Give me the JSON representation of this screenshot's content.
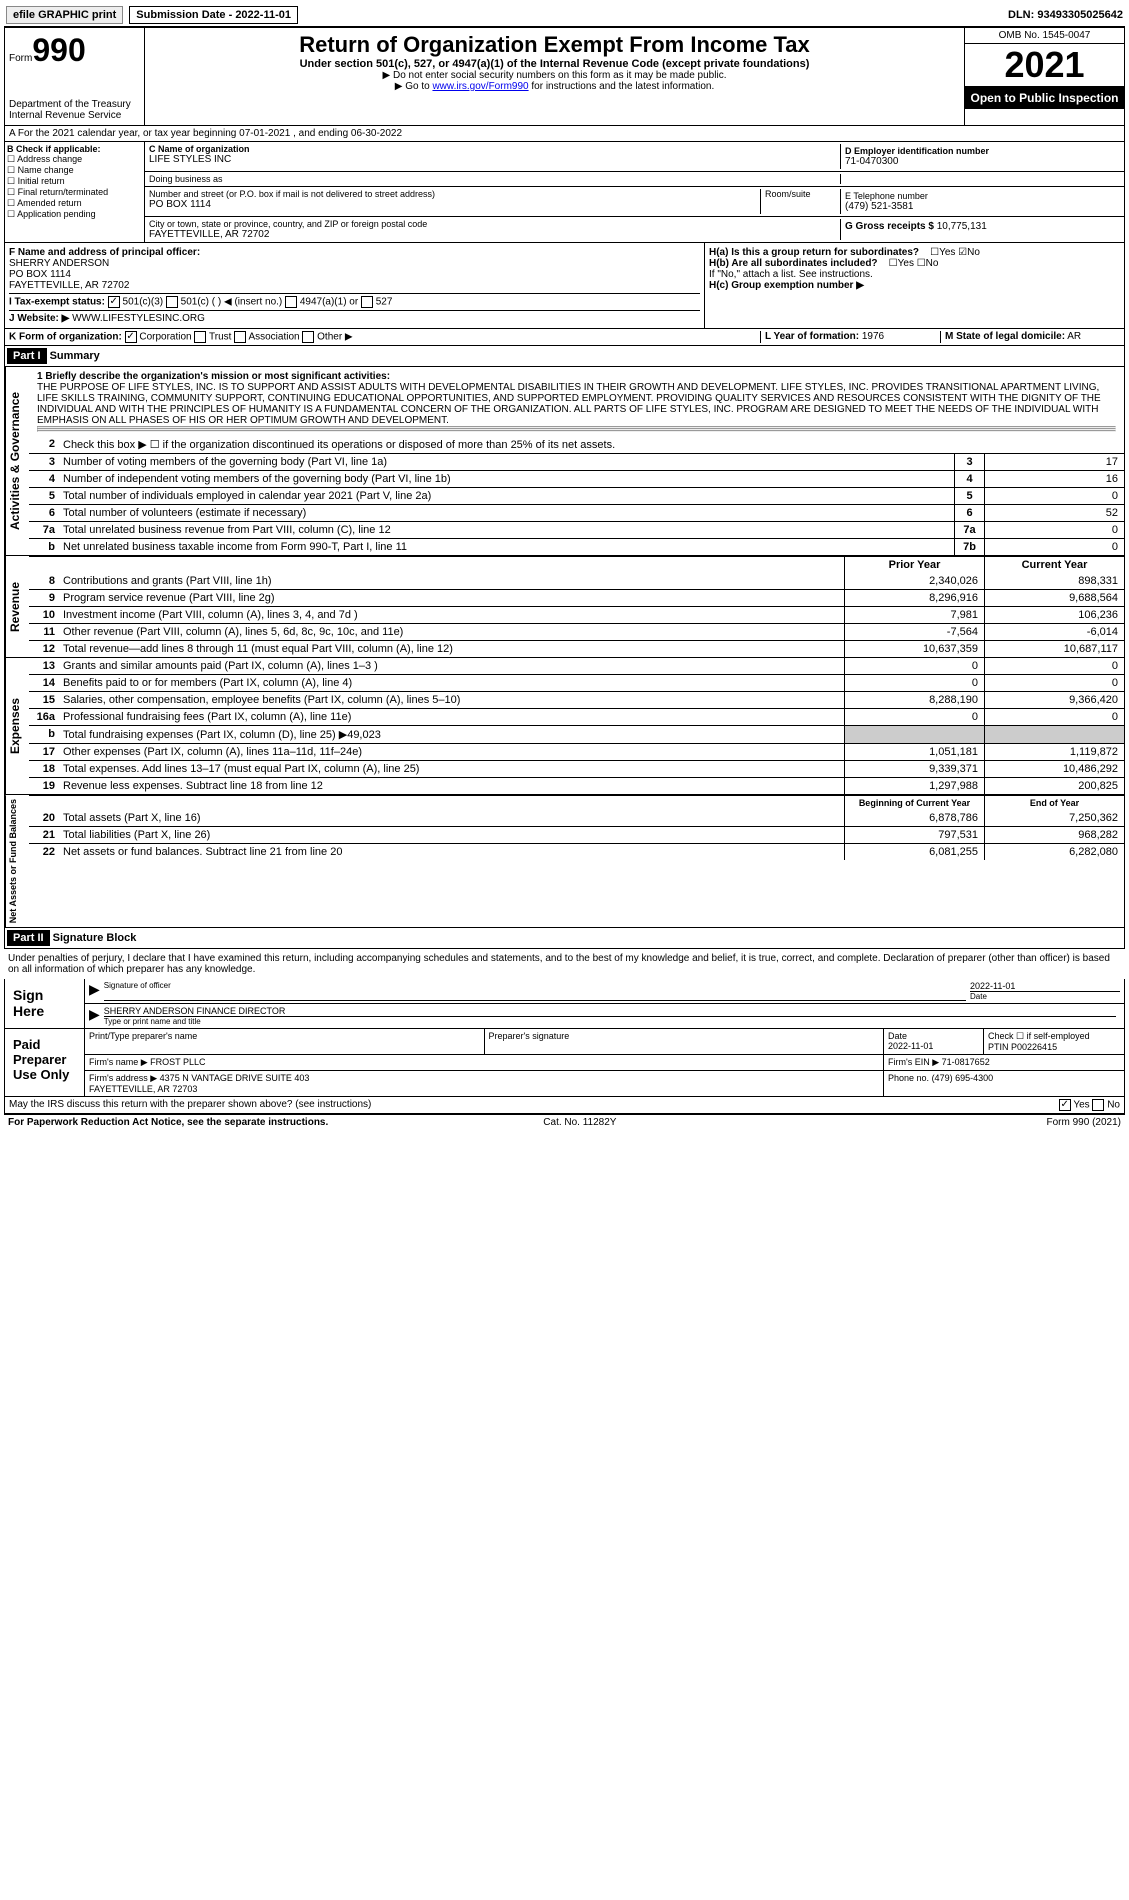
{
  "top": {
    "efile": "efile GRAPHIC print",
    "submission": "Submission Date - 2022-11-01",
    "dln": "DLN: 93493305025642"
  },
  "header": {
    "form_label": "Form",
    "form_num": "990",
    "title": "Return of Organization Exempt From Income Tax",
    "subtitle": "Under section 501(c), 527, or 4947(a)(1) of the Internal Revenue Code (except private foundations)",
    "note1": "▶ Do not enter social security numbers on this form as it may be made public.",
    "note2_prefix": "▶ Go to ",
    "note2_link": "www.irs.gov/Form990",
    "note2_suffix": " for instructions and the latest information.",
    "dept": "Department of the Treasury\nInternal Revenue Service",
    "omb": "OMB No. 1545-0047",
    "year": "2021",
    "inspect": "Open to Public Inspection"
  },
  "row_a": "A For the 2021 calendar year, or tax year beginning 07-01-2021   , and ending 06-30-2022",
  "box_b": {
    "label": "B Check if applicable:",
    "items": [
      "Address change",
      "Name change",
      "Initial return",
      "Final return/terminated",
      "Amended return",
      "Application pending"
    ]
  },
  "box_c": {
    "label_c": "C Name of organization",
    "org": "LIFE STYLES INC",
    "dba_label": "Doing business as",
    "addr_label": "Number and street (or P.O. box if mail is not delivered to street address)",
    "room_label": "Room/suite",
    "addr": "PO BOX 1114",
    "city_label": "City or town, state or province, country, and ZIP or foreign postal code",
    "city": "FAYETTEVILLE, AR  72702"
  },
  "box_d": {
    "label": "D Employer identification number",
    "val": "71-0470300"
  },
  "box_e": {
    "label": "E Telephone number",
    "val": "(479) 521-3581"
  },
  "box_g": {
    "label": "G Gross receipts $",
    "val": "10,775,131"
  },
  "box_f": {
    "label": "F  Name and address of principal officer:",
    "name": "SHERRY ANDERSON",
    "addr1": "PO BOX 1114",
    "addr2": "FAYETTEVILLE, AR  72702"
  },
  "box_h": {
    "ha": "H(a)  Is this a group return for subordinates?",
    "hb": "H(b)  Are all subordinates included?",
    "hb_note": "If \"No,\" attach a list. See instructions.",
    "hc": "H(c)  Group exemption number ▶"
  },
  "row_i": {
    "label": "I  Tax-exempt status:",
    "opts": [
      "501(c)(3)",
      "501(c) (  ) ◀ (insert no.)",
      "4947(a)(1) or",
      "527"
    ]
  },
  "row_j": {
    "label": "J  Website: ▶",
    "val": "WWW.LIFESTYLESINC.ORG"
  },
  "row_k": {
    "label": "K Form of organization:",
    "opts": [
      "Corporation",
      "Trust",
      "Association",
      "Other ▶"
    ]
  },
  "row_l": {
    "label": "L Year of formation:",
    "val": "1976"
  },
  "row_m": {
    "label": "M State of legal domicile:",
    "val": "AR"
  },
  "part1": {
    "hdr": "Part I",
    "title": "Summary"
  },
  "mission": {
    "label": "1   Briefly describe the organization's mission or most significant activities:",
    "text": "THE PURPOSE OF LIFE STYLES, INC. IS TO SUPPORT AND ASSIST ADULTS WITH DEVELOPMENTAL DISABILITIES IN THEIR GROWTH AND DEVELOPMENT. LIFE STYLES, INC. PROVIDES TRANSITIONAL APARTMENT LIVING, LIFE SKILLS TRAINING, COMMUNITY SUPPORT, CONTINUING EDUCATIONAL OPPORTUNITIES, AND SUPPORTED EMPLOYMENT. PROVIDING QUALITY SERVICES AND RESOURCES CONSISTENT WITH THE DIGNITY OF THE INDIVIDUAL AND WITH THE PRINCIPLES OF HUMANITY IS A FUNDAMENTAL CONCERN OF THE ORGANIZATION. ALL PARTS OF LIFE STYLES, INC. PROGRAM ARE DESIGNED TO MEET THE NEEDS OF THE INDIVIDUAL WITH EMPHASIS ON ALL PHASES OF HIS OR HER OPTIMUM GROWTH AND DEVELOPMENT."
  },
  "governance": {
    "label": "Activities & Governance",
    "rows": [
      {
        "n": "2",
        "d": "Check this box ▶ ☐ if the organization discontinued its operations or disposed of more than 25% of its net assets.",
        "box": "",
        "v": ""
      },
      {
        "n": "3",
        "d": "Number of voting members of the governing body (Part VI, line 1a)",
        "box": "3",
        "v": "17"
      },
      {
        "n": "4",
        "d": "Number of independent voting members of the governing body (Part VI, line 1b)",
        "box": "4",
        "v": "16"
      },
      {
        "n": "5",
        "d": "Total number of individuals employed in calendar year 2021 (Part V, line 2a)",
        "box": "5",
        "v": "0"
      },
      {
        "n": "6",
        "d": "Total number of volunteers (estimate if necessary)",
        "box": "6",
        "v": "52"
      },
      {
        "n": "7a",
        "d": "Total unrelated business revenue from Part VIII, column (C), line 12",
        "box": "7a",
        "v": "0"
      },
      {
        "n": "b",
        "d": "Net unrelated business taxable income from Form 990-T, Part I, line 11",
        "box": "7b",
        "v": "0"
      }
    ]
  },
  "col_headers": {
    "prior": "Prior Year",
    "current": "Current Year"
  },
  "revenue": {
    "label": "Revenue",
    "rows": [
      {
        "n": "8",
        "d": "Contributions and grants (Part VIII, line 1h)",
        "p": "2,340,026",
        "c": "898,331"
      },
      {
        "n": "9",
        "d": "Program service revenue (Part VIII, line 2g)",
        "p": "8,296,916",
        "c": "9,688,564"
      },
      {
        "n": "10",
        "d": "Investment income (Part VIII, column (A), lines 3, 4, and 7d )",
        "p": "7,981",
        "c": "106,236"
      },
      {
        "n": "11",
        "d": "Other revenue (Part VIII, column (A), lines 5, 6d, 8c, 9c, 10c, and 11e)",
        "p": "-7,564",
        "c": "-6,014"
      },
      {
        "n": "12",
        "d": "Total revenue—add lines 8 through 11 (must equal Part VIII, column (A), line 12)",
        "p": "10,637,359",
        "c": "10,687,117"
      }
    ]
  },
  "expenses": {
    "label": "Expenses",
    "rows": [
      {
        "n": "13",
        "d": "Grants and similar amounts paid (Part IX, column (A), lines 1–3 )",
        "p": "0",
        "c": "0"
      },
      {
        "n": "14",
        "d": "Benefits paid to or for members (Part IX, column (A), line 4)",
        "p": "0",
        "c": "0"
      },
      {
        "n": "15",
        "d": "Salaries, other compensation, employee benefits (Part IX, column (A), lines 5–10)",
        "p": "8,288,190",
        "c": "9,366,420"
      },
      {
        "n": "16a",
        "d": "Professional fundraising fees (Part IX, column (A), line 11e)",
        "p": "0",
        "c": "0"
      },
      {
        "n": "b",
        "d": "Total fundraising expenses (Part IX, column (D), line 25) ▶49,023",
        "p": "",
        "c": "",
        "gray": true
      },
      {
        "n": "17",
        "d": "Other expenses (Part IX, column (A), lines 11a–11d, 11f–24e)",
        "p": "1,051,181",
        "c": "1,119,872"
      },
      {
        "n": "18",
        "d": "Total expenses. Add lines 13–17 (must equal Part IX, column (A), line 25)",
        "p": "9,339,371",
        "c": "10,486,292"
      },
      {
        "n": "19",
        "d": "Revenue less expenses. Subtract line 18 from line 12",
        "p": "1,297,988",
        "c": "200,825"
      }
    ]
  },
  "netassets_hdr": {
    "begin": "Beginning of Current Year",
    "end": "End of Year"
  },
  "netassets": {
    "label": "Net Assets or Fund Balances",
    "rows": [
      {
        "n": "20",
        "d": "Total assets (Part X, line 16)",
        "p": "6,878,786",
        "c": "7,250,362"
      },
      {
        "n": "21",
        "d": "Total liabilities (Part X, line 26)",
        "p": "797,531",
        "c": "968,282"
      },
      {
        "n": "22",
        "d": "Net assets or fund balances. Subtract line 21 from line 20",
        "p": "6,081,255",
        "c": "6,282,080"
      }
    ]
  },
  "part2": {
    "hdr": "Part II",
    "title": "Signature Block"
  },
  "sig": {
    "declaration": "Under penalties of perjury, I declare that I have examined this return, including accompanying schedules and statements, and to the best of my knowledge and belief, it is true, correct, and complete. Declaration of preparer (other than officer) is based on all information of which preparer has any knowledge.",
    "sign_here": "Sign Here",
    "sig_officer": "Signature of officer",
    "date_label": "Date",
    "date": "2022-11-01",
    "name": "SHERRY ANDERSON  FINANCE DIRECTOR",
    "name_label": "Type or print name and title"
  },
  "preparer": {
    "label": "Paid Preparer Use Only",
    "print_label": "Print/Type preparer's name",
    "sig_label": "Preparer's signature",
    "date_label": "Date",
    "date": "2022-11-01",
    "check_label": "Check ☐ if self-employed",
    "ptin_label": "PTIN",
    "ptin": "P00226415",
    "firm_name_label": "Firm's name    ▶",
    "firm_name": "FROST PLLC",
    "firm_ein_label": "Firm's EIN ▶",
    "firm_ein": "71-0817652",
    "firm_addr_label": "Firm's address ▶",
    "firm_addr": "4375 N VANTAGE DRIVE SUITE 403\nFAYETTEVILLE, AR  72703",
    "phone_label": "Phone no.",
    "phone": "(479) 695-4300"
  },
  "discuss": {
    "q": "May the IRS discuss this return with the preparer shown above? (see instructions)",
    "yes": "Yes",
    "no": "No"
  },
  "footer": {
    "left": "For Paperwork Reduction Act Notice, see the separate instructions.",
    "mid": "Cat. No. 11282Y",
    "right": "Form 990 (2021)"
  }
}
